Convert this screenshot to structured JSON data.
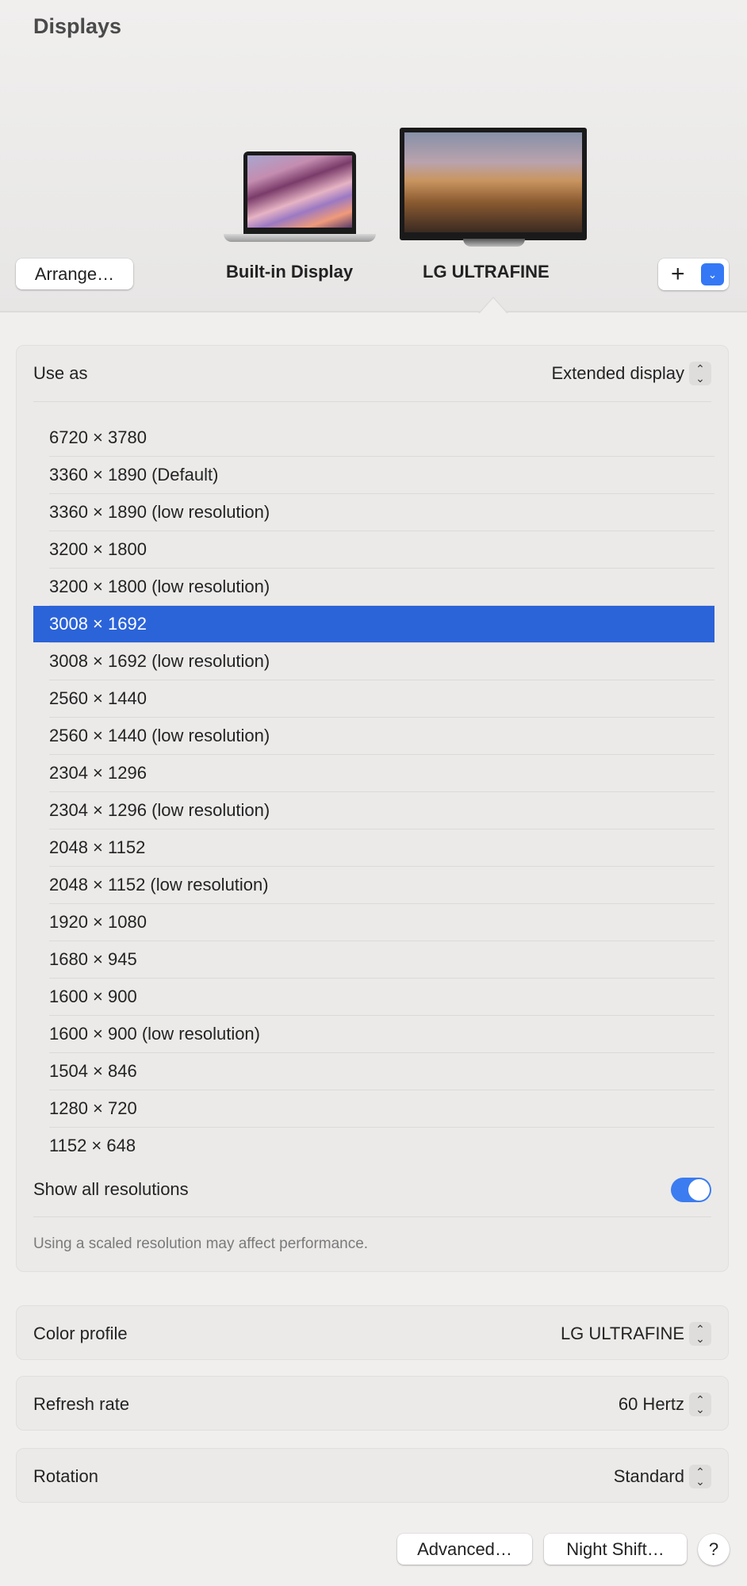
{
  "title": "Displays",
  "displays": [
    {
      "name": "Built-in Display"
    },
    {
      "name": "LG ULTRAFINE",
      "selected": true
    }
  ],
  "arrange_label": "Arrange…",
  "add_label": "+",
  "use_as": {
    "label": "Use as",
    "value": "Extended display"
  },
  "resolutions": [
    "6720 × 3780",
    "3360 × 1890 (Default)",
    "3360 × 1890 (low resolution)",
    "3200 × 1800",
    "3200 × 1800 (low resolution)",
    "3008 × 1692",
    "3008 × 1692 (low resolution)",
    "2560 × 1440",
    "2560 × 1440 (low resolution)",
    "2304 × 1296",
    "2304 × 1296 (low resolution)",
    "2048 × 1152",
    "2048 × 1152 (low resolution)",
    "1920 × 1080",
    "1680 × 945",
    "1600 × 900",
    "1600 × 900 (low resolution)",
    "1504 × 846",
    "1280 × 720",
    "1152 × 648"
  ],
  "selected_resolution": "3008 × 1692",
  "show_all": {
    "label": "Show all resolutions",
    "on": true
  },
  "note": "Using a scaled resolution may affect performance.",
  "color_profile": {
    "label": "Color profile",
    "value": "LG ULTRAFINE"
  },
  "refresh_rate": {
    "label": "Refresh rate",
    "value": "60 Hertz"
  },
  "rotation": {
    "label": "Rotation",
    "value": "Standard"
  },
  "buttons": {
    "advanced": "Advanced…",
    "night_shift": "Night Shift…",
    "help": "?"
  },
  "colors": {
    "accent": "#2b63d9",
    "toggle": "#3b7cf0"
  }
}
